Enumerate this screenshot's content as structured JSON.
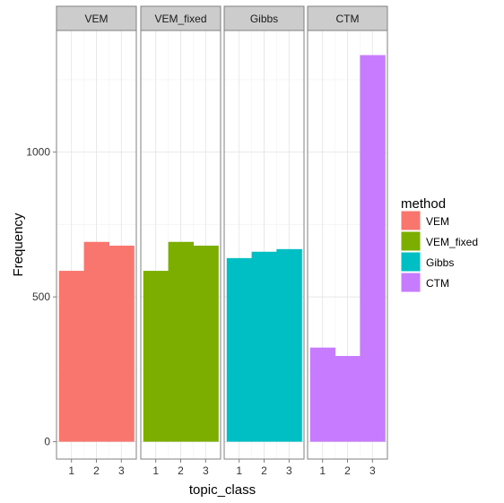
{
  "chart_data": {
    "type": "bar",
    "facet_var": "method",
    "categories": [
      "1",
      "2",
      "3"
    ],
    "panels": [
      {
        "name": "VEM",
        "values": [
          590,
          690,
          677
        ],
        "color": "#F8766D"
      },
      {
        "name": "VEM_fixed",
        "values": [
          590,
          690,
          677
        ],
        "color": "#7CAE00"
      },
      {
        "name": "Gibbs",
        "values": [
          634,
          656,
          665
        ],
        "color": "#00BFC4"
      },
      {
        "name": "CTM",
        "values": [
          325,
          296,
          1335
        ],
        "color": "#C77CFF"
      }
    ],
    "y_ticks": [
      "0",
      "500",
      "1000"
    ],
    "ylim": [
      -60,
      1420
    ],
    "xlabel": "topic_class",
    "ylabel": "Frequency",
    "legend_title": "method",
    "legend_position": "right",
    "grid": true
  }
}
